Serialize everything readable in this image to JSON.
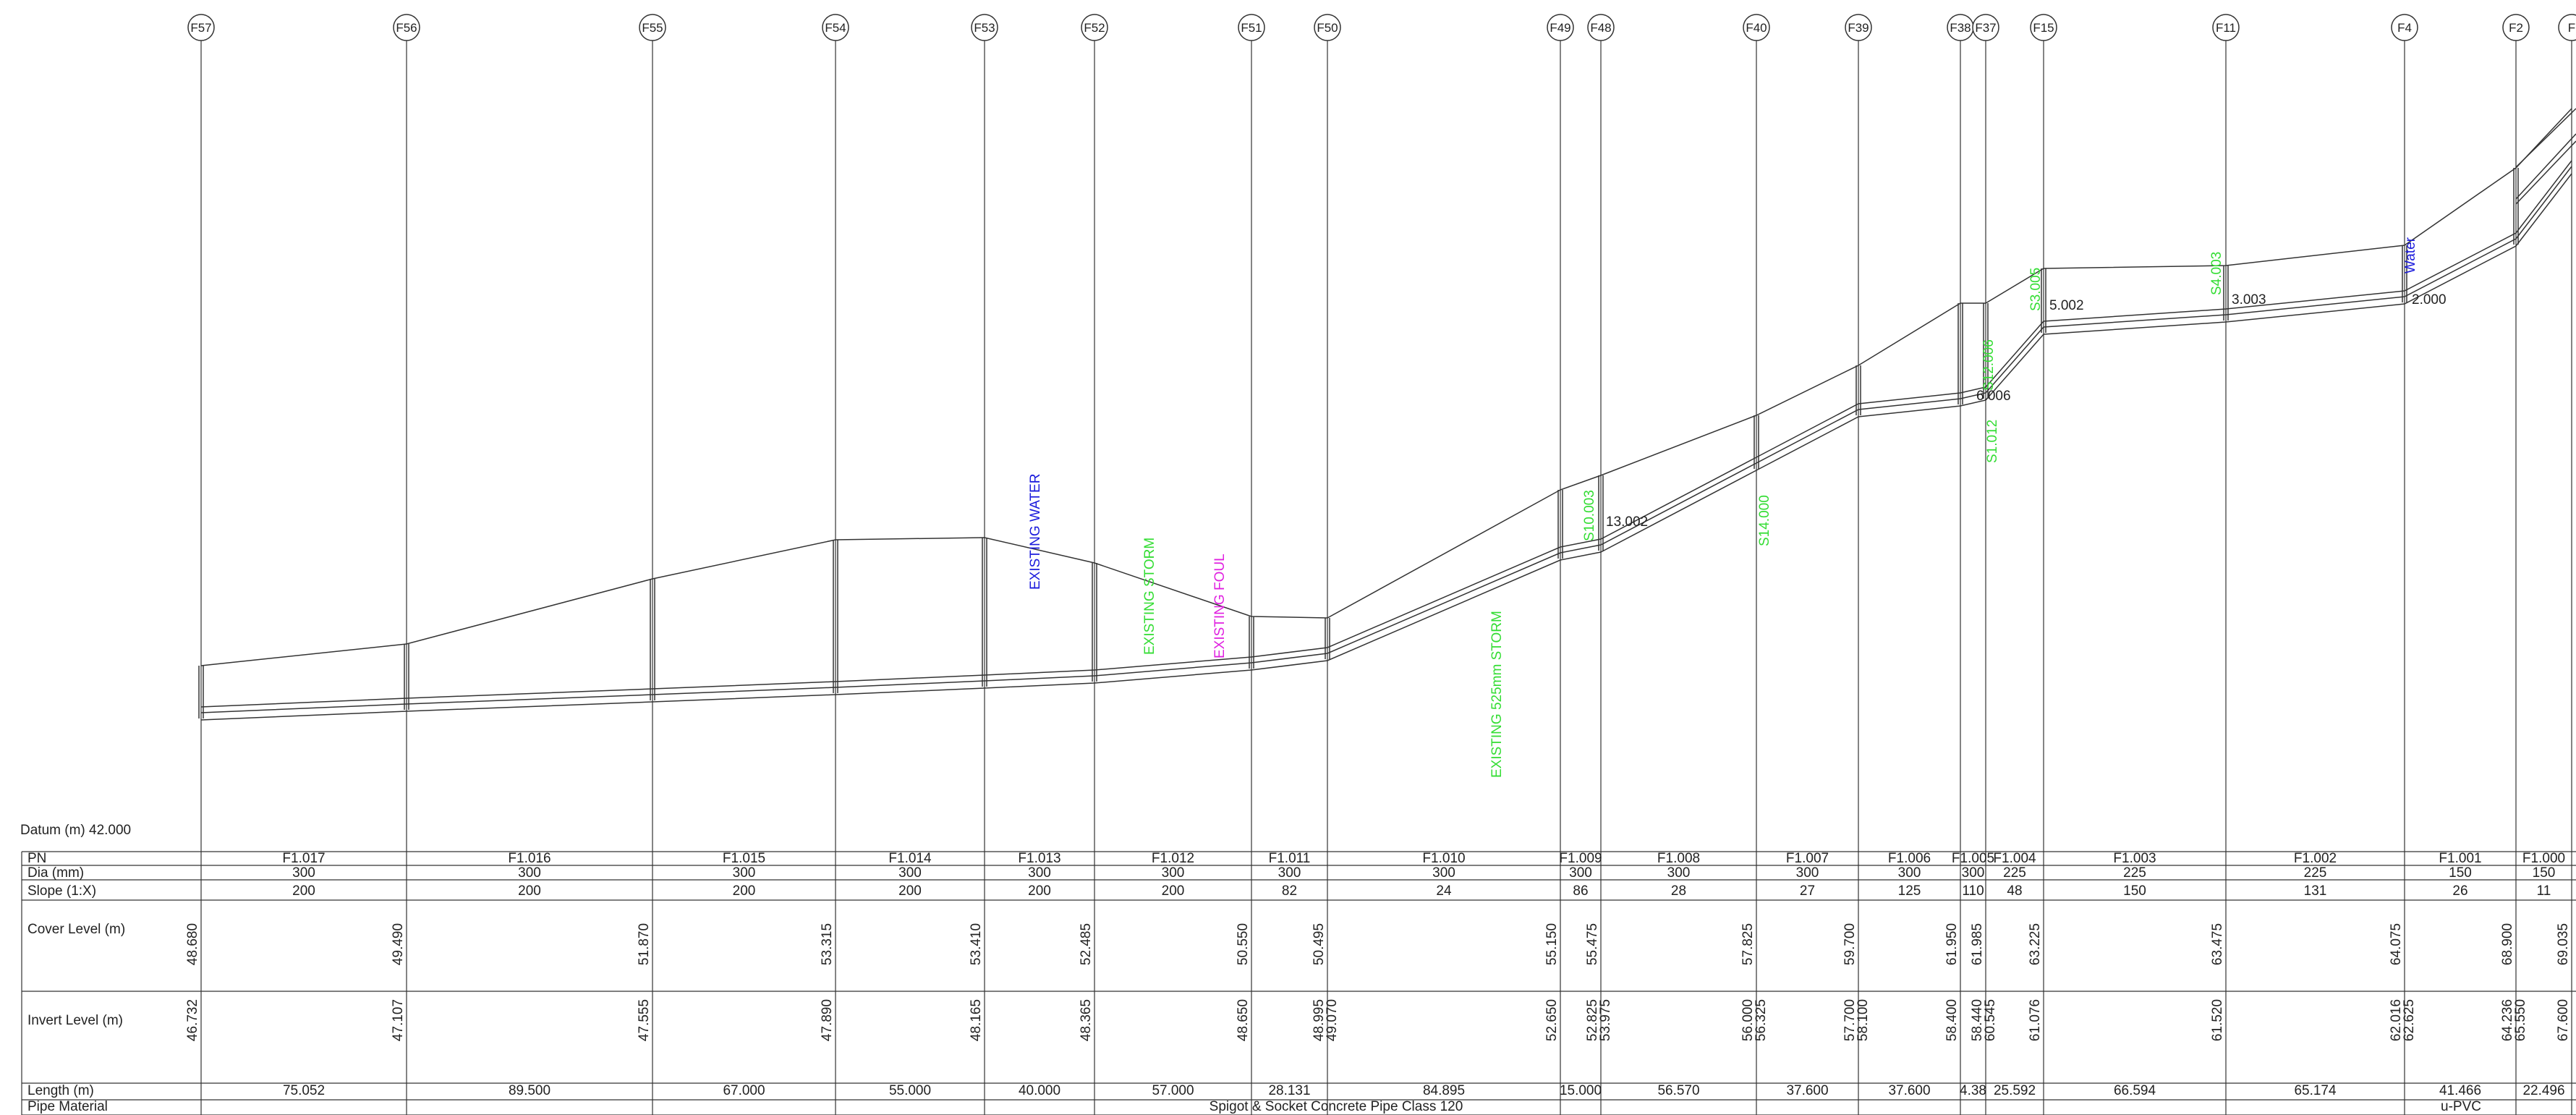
{
  "colors": {
    "line": "#333333",
    "blue": "#1a1adc",
    "green": "#33dd33",
    "magenta": "#e020e0",
    "text": "#222222"
  },
  "datum_label": "Datum (m) 42.000",
  "row_labels": {
    "pn": "PN",
    "dia": "Dia (mm)",
    "slope": "Slope (1:X)",
    "cover": "Cover Level (m)",
    "invert": "Invert Level (m)",
    "length": "Length (m)",
    "material": "Pipe Material"
  },
  "manholes": [
    {
      "name": "F57",
      "cover": "48.680",
      "inverts": [
        "46.732"
      ]
    },
    {
      "name": "F56",
      "cover": "49.490",
      "inverts": [
        "47.107"
      ]
    },
    {
      "name": "F55",
      "cover": "51.870",
      "inverts": [
        "47.555"
      ]
    },
    {
      "name": "F54",
      "cover": "53.315",
      "inverts": [
        "47.890"
      ]
    },
    {
      "name": "F53",
      "cover": "53.410",
      "inverts": [
        "48.165"
      ]
    },
    {
      "name": "F52",
      "cover": "52.485",
      "inverts": [
        "48.365"
      ]
    },
    {
      "name": "F51",
      "cover": "50.550",
      "inverts": [
        "48.650"
      ]
    },
    {
      "name": "F50",
      "cover": "50.495",
      "inverts": [
        "48.995",
        "49.070"
      ]
    },
    {
      "name": "F49",
      "cover": "55.150",
      "inverts": [
        "52.650"
      ]
    },
    {
      "name": "F48",
      "cover": "55.475",
      "inverts": [
        "52.825",
        "53.975"
      ]
    },
    {
      "name": "F40",
      "cover": "57.825",
      "inverts": [
        "56.000",
        "56.325"
      ]
    },
    {
      "name": "F39",
      "cover": "59.700",
      "inverts": [
        "57.700",
        "58.100"
      ]
    },
    {
      "name": "F38",
      "cover": "61.950",
      "inverts": [
        "58.400"
      ]
    },
    {
      "name": "F37",
      "cover": "61.985",
      "inverts": [
        "58.440",
        "60.545"
      ]
    },
    {
      "name": "F15",
      "cover": "63.225",
      "inverts": [
        "61.076"
      ]
    },
    {
      "name": "F11",
      "cover": "63.475",
      "inverts": [
        "61.520"
      ]
    },
    {
      "name": "F4",
      "cover": "64.075",
      "inverts": [
        "62.016",
        "62.625"
      ]
    },
    {
      "name": "F2",
      "cover": "68.900",
      "inverts": [
        "64.236",
        "65.550"
      ]
    },
    {
      "name": "F",
      "cover": "69.035",
      "inverts": [
        "67.600"
      ]
    }
  ],
  "pipes": [
    {
      "pn": "F1.017",
      "dia": "300",
      "slope": "200",
      "length": "75.052"
    },
    {
      "pn": "F1.016",
      "dia": "300",
      "slope": "200",
      "length": "89.500"
    },
    {
      "pn": "F1.015",
      "dia": "300",
      "slope": "200",
      "length": "67.000"
    },
    {
      "pn": "F1.014",
      "dia": "300",
      "slope": "200",
      "length": "55.000"
    },
    {
      "pn": "F1.013",
      "dia": "300",
      "slope": "200",
      "length": "40.000"
    },
    {
      "pn": "F1.012",
      "dia": "300",
      "slope": "200",
      "length": "57.000"
    },
    {
      "pn": "F1.011",
      "dia": "300",
      "slope": "82",
      "length": "28.131"
    },
    {
      "pn": "F1.010",
      "dia": "300",
      "slope": "24",
      "length": "84.895"
    },
    {
      "pn": "F1.009",
      "dia": "300",
      "slope": "86",
      "length": "15.000"
    },
    {
      "pn": "F1.008",
      "dia": "300",
      "slope": "28",
      "length": "56.570"
    },
    {
      "pn": "F1.007",
      "dia": "300",
      "slope": "27",
      "length": "37.600"
    },
    {
      "pn": "F1.006",
      "dia": "300",
      "slope": "125",
      "length": "37.600"
    },
    {
      "pn": "F1.005",
      "dia": "300",
      "slope": "110",
      "length": "4.38"
    },
    {
      "pn": "F1.004",
      "dia": "225",
      "slope": "48",
      "length": "25.592"
    },
    {
      "pn": "F1.003",
      "dia": "225",
      "slope": "150",
      "length": "66.594"
    },
    {
      "pn": "F1.002",
      "dia": "225",
      "slope": "131",
      "length": "65.174"
    },
    {
      "pn": "F1.001",
      "dia": "150",
      "slope": "26",
      "length": "41.466"
    },
    {
      "pn": "F1.000",
      "dia": "150",
      "slope": "11",
      "length": "22.496"
    }
  ],
  "materials": [
    {
      "text": "Spigot & Socket Concrete Pipe Class 120"
    },
    {
      "text": "u-PVC"
    }
  ],
  "branch_labels": [
    {
      "text": "13.002"
    },
    {
      "text": "6.006"
    },
    {
      "text": "5.002"
    },
    {
      "text": "3.003"
    },
    {
      "text": "2.000"
    }
  ],
  "crossings": [
    {
      "text": "EXISTING WATER",
      "color": "blue"
    },
    {
      "text": "EXISTING STORM",
      "color": "green"
    },
    {
      "text": "EXISTING FOUL",
      "color": "magenta"
    },
    {
      "text": "EXISTING 525mm STORM",
      "color": "green"
    },
    {
      "text": "S10.003",
      "color": "green"
    },
    {
      "text": "S14.000",
      "color": "green"
    },
    {
      "text": "S12.006",
      "color": "green"
    },
    {
      "text": "S1.012",
      "color": "green"
    },
    {
      "text": "S3.005",
      "color": "green"
    },
    {
      "text": "S4.003",
      "color": "green"
    },
    {
      "text": "Water",
      "color": "blue"
    }
  ]
}
